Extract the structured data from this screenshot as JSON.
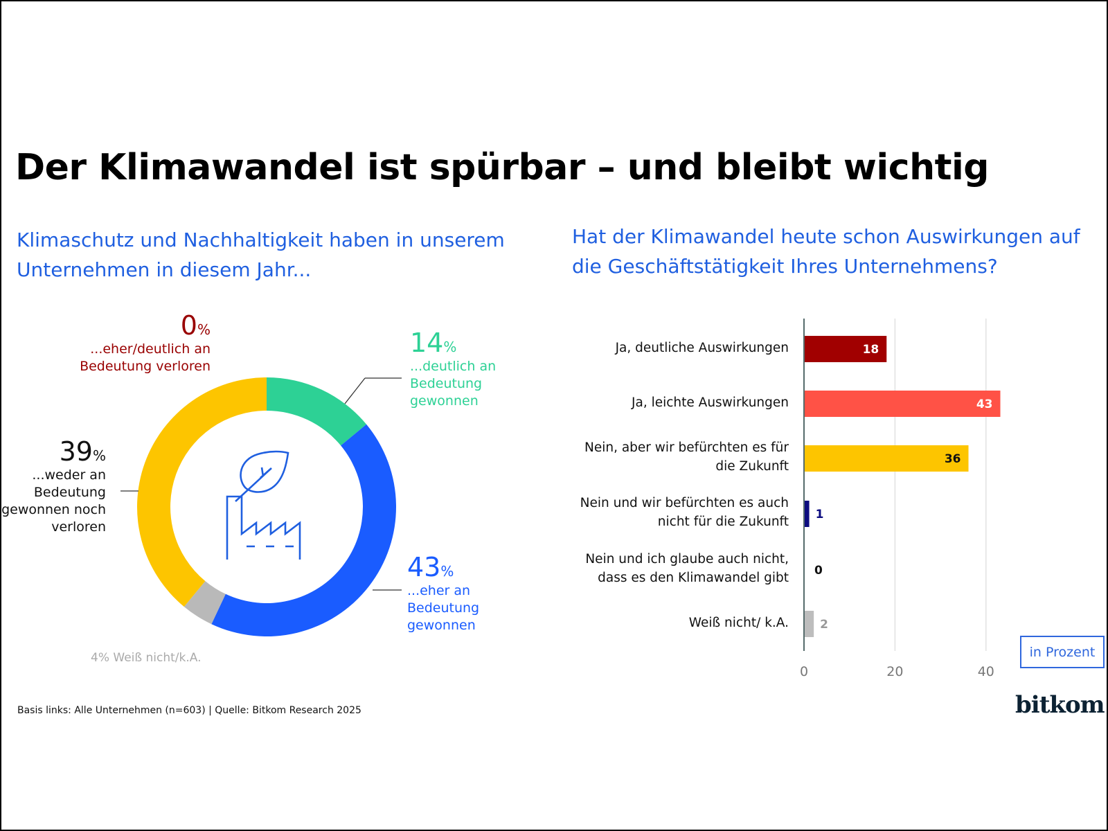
{
  "title": "Der Klimawandel ist spürbar – und bleibt wichtig",
  "footer": "Basis links: Alle Unternehmen (n=603) | Quelle: Bitkom Research 2025",
  "logo": "bitkom",
  "chart_data": [
    {
      "type": "pie",
      "donut": true,
      "title_lines": [
        "Klimaschutz und Nachhaltigkeit haben in unserem",
        "Unternehmen in diesem Jahr..."
      ],
      "center_icon": "leaf-factory-icon",
      "unit": "%",
      "slices": [
        {
          "value": 14,
          "label_lines": [
            "...deutlich an",
            "Bedeutung",
            "gewonnen"
          ],
          "color": "#2dd195"
        },
        {
          "value": 43,
          "label_lines": [
            "...eher an",
            "Bedeutung",
            "gewonnen"
          ],
          "color": "#1a5cff"
        },
        {
          "value": 4,
          "label": "Weiß nicht/k.A.",
          "color": "#b9b9b9"
        },
        {
          "value": 39,
          "label_lines": [
            "...weder an",
            "Bedeutung",
            "gewonnen noch",
            "verloren"
          ],
          "color": "#fdc500"
        },
        {
          "value": 0,
          "label_lines": [
            "...eher/deutlich an",
            "Bedeutung verloren"
          ],
          "color": "#990000"
        }
      ]
    },
    {
      "type": "bar",
      "orientation": "horizontal",
      "title_lines": [
        "Hat der Klimawandel heute schon Auswirkungen auf",
        "die Geschäftstätigkeit Ihres Unternehmens?"
      ],
      "unit_label": "in Prozent",
      "xlim": [
        0,
        45
      ],
      "xticks": [
        0,
        20,
        40
      ],
      "grid": true,
      "categories": [
        [
          "Ja, deutliche Auswirkungen"
        ],
        [
          "Ja, leichte Auswirkungen"
        ],
        [
          "Nein, aber wir befürchten es für",
          "die Zukunft"
        ],
        [
          "Nein und wir befürchten es auch",
          "nicht für die Zukunft"
        ],
        [
          "Nein und ich glaube auch nicht,",
          "dass es den Klimawandel gibt"
        ],
        [
          "Weiß nicht/ k.A."
        ]
      ],
      "values": [
        18,
        43,
        36,
        1,
        0,
        2
      ],
      "colors": [
        "#a10000",
        "#ff5246",
        "#fdc500",
        "#0d0d80",
        "#222222",
        "#bdbdbd"
      ],
      "value_label_colors": [
        "#ffffff",
        "#ffffff",
        "#111111",
        "#0d0d80",
        "#111111",
        "#999999"
      ]
    }
  ]
}
